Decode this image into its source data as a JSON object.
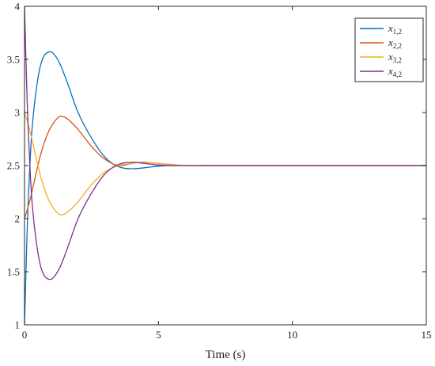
{
  "chart_data": {
    "type": "line",
    "title": "",
    "xlabel": "Time (s)",
    "ylabel": "",
    "xlim": [
      0,
      15
    ],
    "ylim": [
      1,
      4
    ],
    "xticks": [
      0,
      5,
      10,
      15
    ],
    "yticks": [
      1,
      1.5,
      2,
      2.5,
      3,
      3.5,
      4
    ],
    "xtick_labels": [
      "0",
      "5",
      "10",
      "15"
    ],
    "ytick_labels": [
      "1",
      "1.5",
      "2",
      "2.5",
      "3",
      "3.5",
      "4"
    ],
    "grid": false,
    "legend_position": "top-right",
    "series": [
      {
        "name": "x1,2",
        "name_base": "x",
        "name_sub": "1,2",
        "color": "#0072BD",
        "x": [
          0,
          0.1,
          0.2,
          0.3,
          0.5,
          0.7,
          1.0,
          1.3,
          1.6,
          2.0,
          2.5,
          3.0,
          3.5,
          4.0,
          4.5,
          5.0,
          5.5,
          6.0,
          7.0,
          8.0,
          10.0,
          12.0,
          15.0
        ],
        "values": [
          1.0,
          1.9,
          2.5,
          2.9,
          3.32,
          3.52,
          3.57,
          3.47,
          3.28,
          3.0,
          2.76,
          2.58,
          2.49,
          2.47,
          2.48,
          2.495,
          2.5,
          2.5,
          2.5,
          2.5,
          2.5,
          2.5,
          2.5
        ]
      },
      {
        "name": "x2,2",
        "name_base": "x",
        "name_sub": "2,2",
        "color": "#D95319",
        "x": [
          0,
          0.2,
          0.4,
          0.6,
          0.8,
          1.0,
          1.3,
          1.6,
          2.0,
          2.5,
          3.0,
          3.5,
          4.0,
          4.3,
          4.6,
          5.0,
          5.5,
          6.0,
          7.0,
          8.0,
          10.0,
          12.0,
          15.0
        ],
        "values": [
          2.0,
          2.17,
          2.39,
          2.6,
          2.76,
          2.87,
          2.96,
          2.94,
          2.84,
          2.68,
          2.56,
          2.5,
          2.52,
          2.53,
          2.53,
          2.52,
          2.51,
          2.5,
          2.5,
          2.5,
          2.5,
          2.5,
          2.5
        ]
      },
      {
        "name": "x3,2",
        "name_base": "x",
        "name_sub": "3,2",
        "color": "#EDB120",
        "x": [
          0,
          0.2,
          0.4,
          0.6,
          0.8,
          1.0,
          1.3,
          1.6,
          2.0,
          2.5,
          3.0,
          3.5,
          4.0,
          4.3,
          4.6,
          5.0,
          5.5,
          6.0,
          7.0,
          8.0,
          10.0,
          12.0,
          15.0
        ],
        "values": [
          3.0,
          2.83,
          2.61,
          2.4,
          2.24,
          2.13,
          2.04,
          2.06,
          2.16,
          2.32,
          2.44,
          2.5,
          2.52,
          2.53,
          2.53,
          2.52,
          2.51,
          2.5,
          2.5,
          2.5,
          2.5,
          2.5,
          2.5
        ]
      },
      {
        "name": "x4,2",
        "name_base": "x",
        "name_sub": "4,2",
        "color": "#7E2F8E",
        "x": [
          0,
          0.1,
          0.2,
          0.3,
          0.5,
          0.7,
          1.0,
          1.3,
          1.6,
          2.0,
          2.5,
          3.0,
          3.5,
          4.0,
          4.5,
          5.0,
          5.5,
          6.0,
          7.0,
          8.0,
          10.0,
          12.0,
          15.0
        ],
        "values": [
          4.0,
          3.1,
          2.5,
          2.1,
          1.68,
          1.48,
          1.43,
          1.53,
          1.72,
          2.0,
          2.24,
          2.42,
          2.51,
          2.53,
          2.52,
          2.505,
          2.5,
          2.5,
          2.5,
          2.5,
          2.5,
          2.5,
          2.5
        ]
      }
    ]
  }
}
